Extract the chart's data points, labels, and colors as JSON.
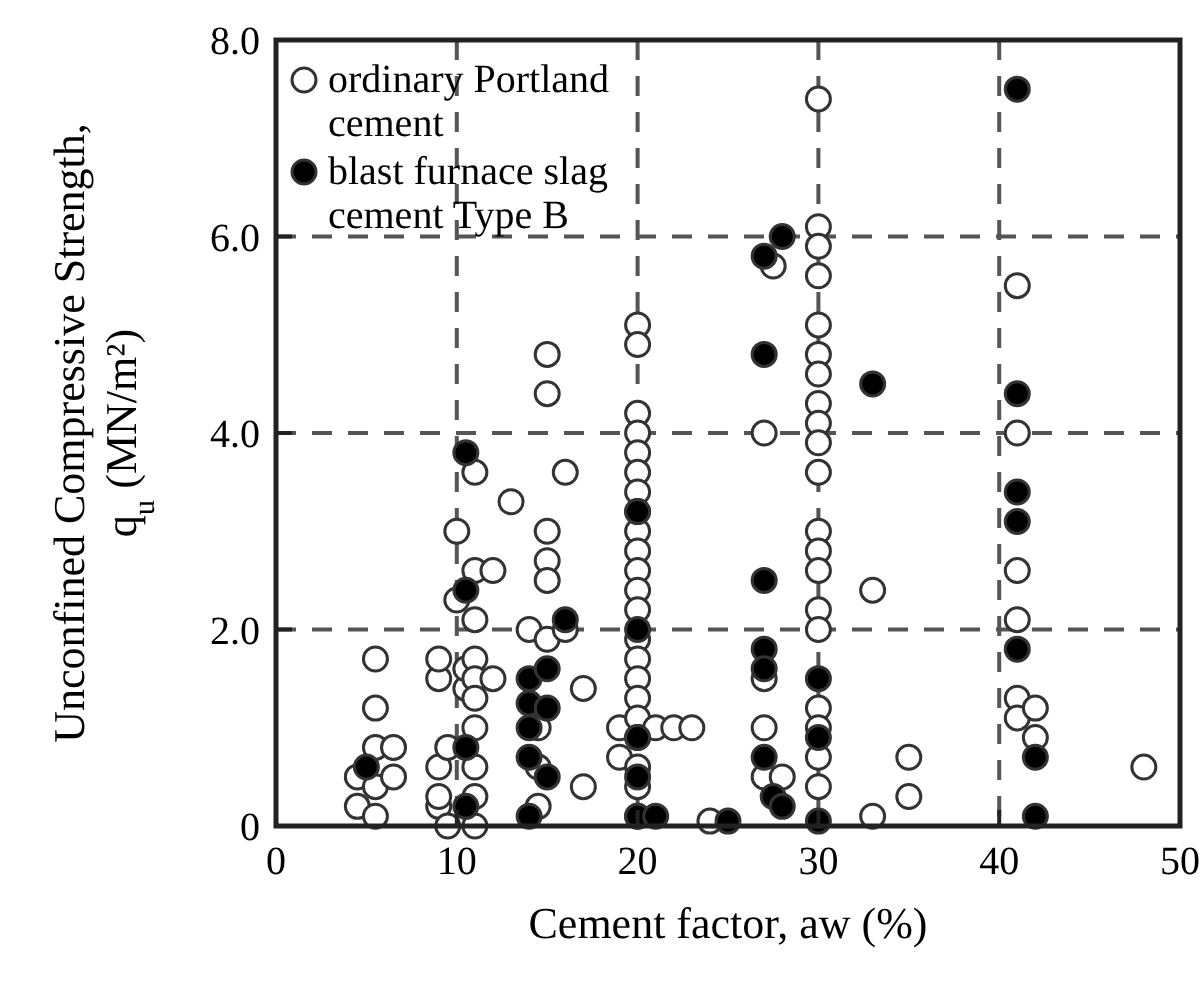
{
  "chart_data": {
    "type": "scatter",
    "xlabel": "Cement factor, aw (%)",
    "ylabel": "Unconfined Compressive Strength, q$_{u}$ (MN/m²)",
    "xlim": [
      0,
      50
    ],
    "ylim": [
      0,
      8
    ],
    "xticks": [
      0,
      10,
      20,
      30,
      40,
      50
    ],
    "yticks": [
      0,
      {
        "value": 2,
        "label": "2.0"
      },
      {
        "value": 4,
        "label": "4.0"
      },
      {
        "value": 6,
        "label": "6.0"
      },
      {
        "value": 8,
        "label": "8.0"
      }
    ],
    "grid": true,
    "legend": "top left",
    "marker": "circle",
    "series": [
      {
        "name": "ordinary Portland cement",
        "color": "#ffffff",
        "x": [
          4.5,
          4.5,
          5.5,
          5.5,
          5.5,
          5.5,
          5.5,
          6.5,
          6.5,
          9,
          9,
          9,
          9,
          9,
          10,
          10,
          9.5,
          9.5,
          10.5,
          10.5,
          11,
          11,
          11,
          11,
          11,
          11,
          11,
          11,
          11,
          11,
          12,
          12,
          13,
          14,
          15,
          15,
          15,
          15,
          15,
          15,
          16,
          16,
          17,
          17,
          14.5,
          14.5,
          14.5,
          19,
          19,
          20,
          20,
          20,
          20,
          20,
          20,
          20,
          20,
          20,
          20,
          20,
          20,
          20,
          20,
          20,
          20,
          20,
          20,
          20,
          20,
          20,
          20,
          21,
          22,
          23,
          24,
          27,
          27.5,
          27,
          27,
          27,
          28,
          30,
          30,
          30,
          30,
          30,
          30,
          30,
          30,
          30,
          30,
          30,
          30,
          30,
          30,
          30,
          30,
          30,
          30,
          30,
          30,
          33,
          33,
          35,
          35,
          41,
          41,
          41,
          41,
          41,
          41,
          42,
          42,
          48
        ],
        "values": [
          0.5,
          0.2,
          1.7,
          1.2,
          0.8,
          0.4,
          0.1,
          0.8,
          0.5,
          0.2,
          0.3,
          0.6,
          1.5,
          1.7,
          3.0,
          2.3,
          0.8,
          0.0,
          1.4,
          1.6,
          3.6,
          2.6,
          2.1,
          1.7,
          1.5,
          1.3,
          1.0,
          0.6,
          0.3,
          0.0,
          2.6,
          1.5,
          3.3,
          2.0,
          4.8,
          4.4,
          3.0,
          2.7,
          2.5,
          1.9,
          3.6,
          2.0,
          1.4,
          0.4,
          1.0,
          0.6,
          0.2,
          1.0,
          0.7,
          5.1,
          4.9,
          4.2,
          4.0,
          3.8,
          3.6,
          3.4,
          3.2,
          3.0,
          2.8,
          2.6,
          2.4,
          2.2,
          1.9,
          1.7,
          1.5,
          1.3,
          1.1,
          0.9,
          0.6,
          0.4,
          0.1,
          1.0,
          1.0,
          1.0,
          0.05,
          4.0,
          5.7,
          1.5,
          1.0,
          0.5,
          0.5,
          7.4,
          6.1,
          5.9,
          5.6,
          5.1,
          4.8,
          4.6,
          4.3,
          4.1,
          3.9,
          3.6,
          3.0,
          2.8,
          2.6,
          2.2,
          2.0,
          1.2,
          1.0,
          0.7,
          0.4,
          2.4,
          0.1,
          0.7,
          0.3,
          5.5,
          4.0,
          2.6,
          2.1,
          1.3,
          1.1,
          1.2,
          0.9,
          0.6
        ]
      },
      {
        "name": "blast furnace slag cement Type B",
        "color": "#000000",
        "x": [
          5,
          10.5,
          10.5,
          10.5,
          10.5,
          14,
          14,
          14,
          14,
          14,
          15,
          15,
          15,
          16,
          20,
          20,
          20,
          20,
          20,
          21,
          25,
          27,
          27,
          27,
          27,
          27,
          27,
          27.5,
          28,
          28,
          30,
          30,
          30,
          33,
          41,
          41,
          41,
          41,
          41,
          42,
          42
        ],
        "values": [
          0.6,
          3.8,
          2.4,
          0.8,
          0.2,
          1.5,
          1.25,
          1.0,
          0.7,
          0.1,
          1.6,
          1.2,
          0.5,
          2.1,
          3.2,
          2.0,
          0.9,
          0.5,
          0.1,
          0.1,
          0.05,
          5.8,
          4.8,
          2.5,
          1.8,
          1.6,
          0.7,
          0.3,
          6.0,
          0.2,
          1.5,
          0.9,
          0.05,
          4.5,
          7.5,
          4.4,
          3.4,
          3.1,
          1.8,
          0.7,
          0.1
        ]
      }
    ]
  }
}
